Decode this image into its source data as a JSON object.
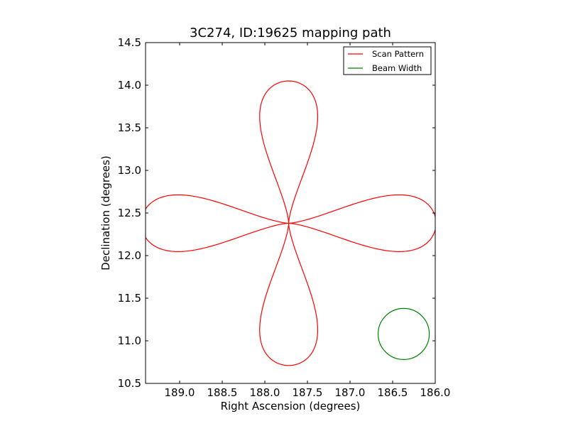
{
  "chart_data": {
    "type": "line",
    "title": "3C274, ID:19625 mapping path",
    "xlabel": "Right Ascension (degrees)",
    "ylabel": "Declination (degrees)",
    "xlim": [
      189.4,
      186.0
    ],
    "ylim": [
      10.5,
      14.5
    ],
    "x_inverted": true,
    "grid": false,
    "legend_position": "top-right",
    "xticks": [
      189.0,
      188.5,
      188.0,
      187.5,
      187.0,
      186.5,
      186.0
    ],
    "xtick_labels": [
      "189.0",
      "188.5",
      "188.0",
      "187.5",
      "187.0",
      "186.5",
      "186.0"
    ],
    "yticks": [
      10.5,
      11.0,
      11.5,
      12.0,
      12.5,
      13.0,
      13.5,
      14.0,
      14.5
    ],
    "ytick_labels": [
      "10.5",
      "11.0",
      "11.5",
      "12.0",
      "12.5",
      "13.0",
      "13.5",
      "14.0",
      "14.5"
    ],
    "series": [
      {
        "name": "Scan Pattern",
        "color": "#ff0000",
        "shape": "four-petal rosette",
        "center": [
          187.72,
          12.38
        ],
        "petal_extent_x": 1.73,
        "petal_extent_y": 1.67,
        "petal_half_width_x": 0.46,
        "petal_half_width_y": 0.45,
        "points_per_petal": 60
      },
      {
        "name": "Beam Width",
        "color": "#008000",
        "shape": "circle",
        "center": [
          186.37,
          11.08
        ],
        "radius_x": 0.3,
        "radius_y": 0.3
      }
    ]
  }
}
